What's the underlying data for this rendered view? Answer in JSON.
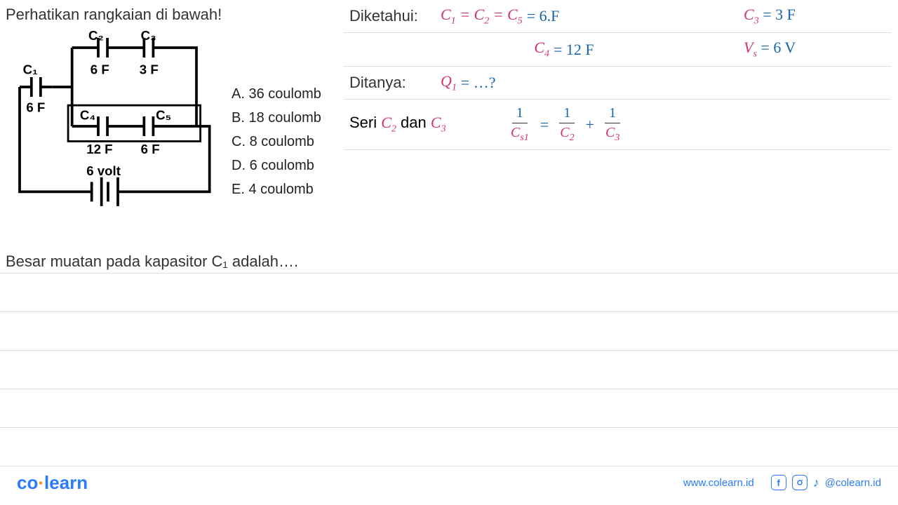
{
  "problem_title": "Perhatikan rangkaian di bawah!",
  "question_text": "Besar muatan pada kapasitor C₁ adalah….",
  "circuit": {
    "C1": {
      "label": "C₁",
      "value": "6 F"
    },
    "C2": {
      "label": "C₂",
      "value": "6 F"
    },
    "C3": {
      "label": "C₃",
      "value": "3 F"
    },
    "C4": {
      "label": "C₄",
      "value": "12 F"
    },
    "C5": {
      "label": "C₅",
      "value": "6 F"
    },
    "source": "6 volt",
    "line_color": "#000000",
    "line_width": 4,
    "font_weight": "bold",
    "font_size": 20
  },
  "choices": [
    {
      "key": "A",
      "text": "36 coulomb"
    },
    {
      "key": "B",
      "text": "18 coulomb"
    },
    {
      "key": "C",
      "text": "8 coulomb"
    },
    {
      "key": "D",
      "text": "6 coulomb"
    },
    {
      "key": "E",
      "text": "4 coulomb"
    }
  ],
  "solution": {
    "diketahui_label": "Diketahui:",
    "ditanya_label": "Ditanya:",
    "given": {
      "eq1": {
        "lhs_html": "C<span class='sub'>1</span> = C<span class='sub'>2</span> = C<span class='sub'>5</span>",
        "rhs": "= 6.F"
      },
      "eq2": {
        "lhs_html": "C<span class='sub'>3</span>",
        "rhs": "= 3 F"
      },
      "eq3": {
        "lhs_html": "C<span class='sub'>4</span>",
        "rhs": "= 12 F"
      },
      "eq4": {
        "lhs_html": "V<span class='sub'>s</span>",
        "rhs": "= 6 V"
      }
    },
    "asked": {
      "lhs_html": "Q<span class='sub'>1</span>",
      "rhs": "= …?"
    },
    "step_label": "Seri C₂ dan C₃",
    "step_label_html": "Seri <span class='c-pink math'>C<span class='sub'>2</span></span> dan <span class='c-pink math'>C<span class='sub'>3</span></span>",
    "frac_eq": {
      "f1_num": "1",
      "f1_den_html": "C<span class='sub'>s1</span>",
      "f2_num": "1",
      "f2_den_html": "C<span class='sub'>2</span>",
      "f3_num": "1",
      "f3_den_html": "C<span class='sub'>3</span>"
    }
  },
  "colors": {
    "pink": "#d6336c",
    "blue": "#1864ab",
    "text": "#333333",
    "rule": "#dddddd",
    "brand_blue": "#2b7bff",
    "brand_orange": "#ff8c00",
    "bg": "#ffffff"
  },
  "empty_row_count": 6,
  "footer": {
    "logo_co": "co",
    "logo_learn": "learn",
    "url": "www.colearn.id",
    "handle": "@colearn.id",
    "icons": [
      "facebook-icon",
      "instagram-icon",
      "tiktok-icon"
    ]
  }
}
